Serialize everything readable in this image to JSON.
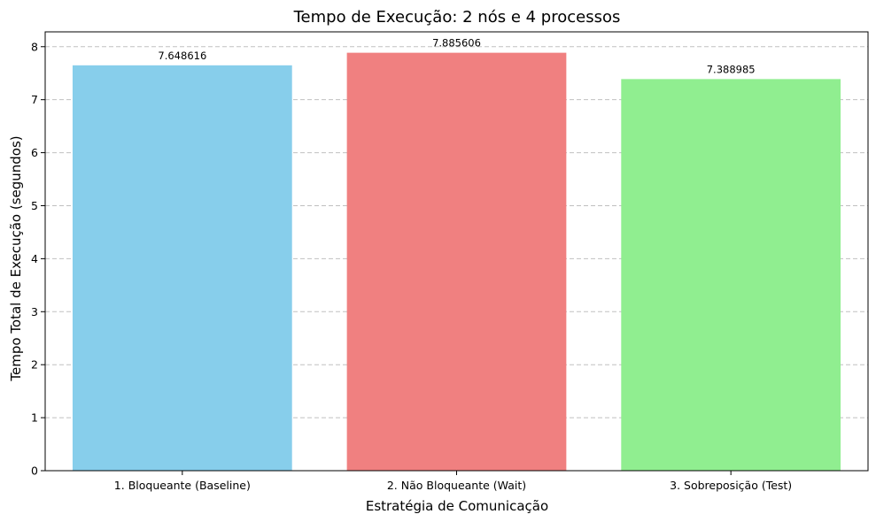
{
  "chart_data": {
    "type": "bar",
    "title": "Tempo de Execução: 2 nós e 4 processos",
    "xlabel": "Estratégia de Comunicação",
    "ylabel": "Tempo Total de Execução (segundos)",
    "categories": [
      "1. Bloqueante (Baseline)",
      "2. Não Bloqueante (Wait)",
      "3. Sobreposição (Test)"
    ],
    "values": [
      7.648616,
      7.885606,
      7.388985
    ],
    "value_labels": [
      "7.648616",
      "7.885606",
      "7.388985"
    ],
    "colors": [
      "#87ceeb",
      "#f08080",
      "#90ee90"
    ],
    "ylim": [
      0,
      8.28
    ],
    "yticks": [
      0,
      1,
      2,
      3,
      4,
      5,
      6,
      7,
      8
    ],
    "grid": "horizontal-dashed",
    "legend": "none"
  }
}
